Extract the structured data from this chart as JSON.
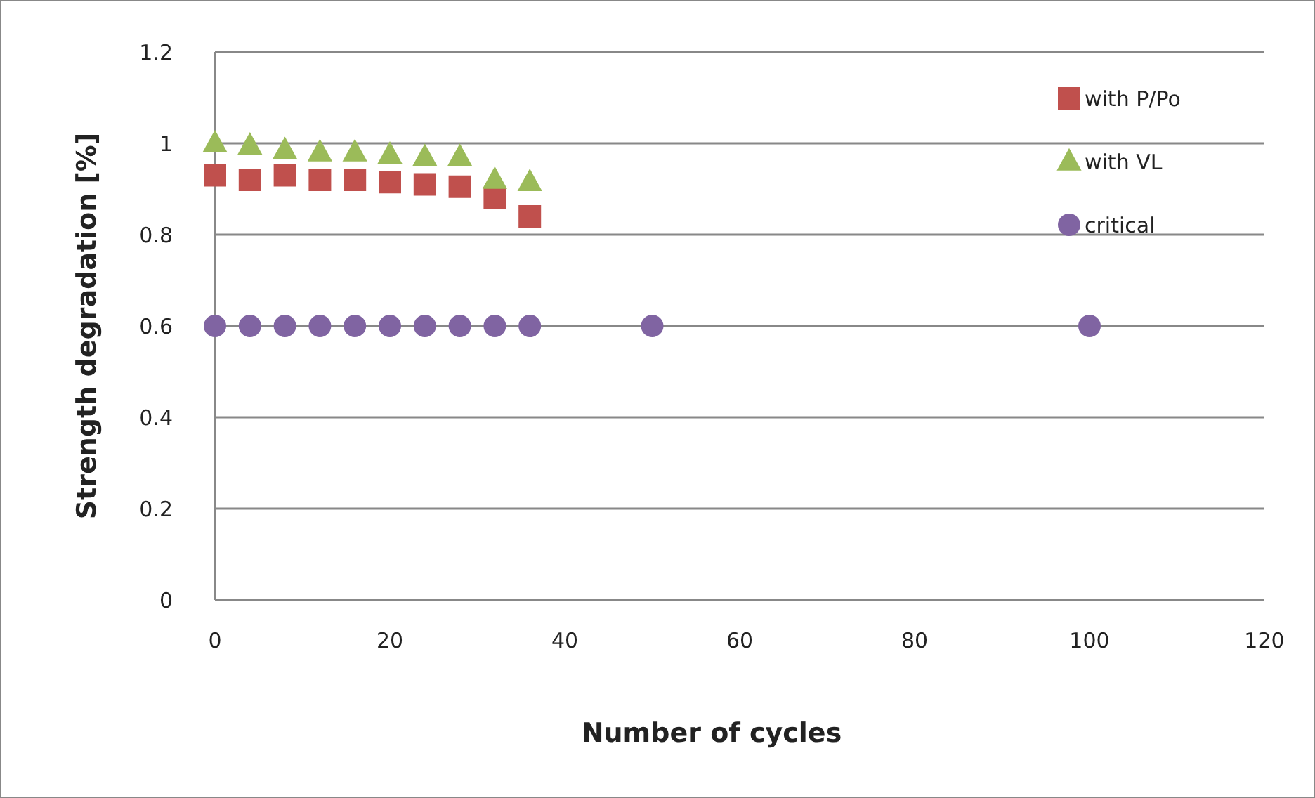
{
  "chart_data": {
    "type": "scatter",
    "xlabel": "Number of cycles",
    "ylabel": "Strength degradation [%]",
    "xlim": [
      0,
      120
    ],
    "xticks": [
      0,
      20,
      40,
      60,
      80,
      100,
      120
    ],
    "ylim": [
      0,
      1.2
    ],
    "yticks": [
      0,
      0.2,
      0.4,
      0.6,
      0.8,
      1,
      1.2
    ],
    "grid": "y",
    "legend": "top right",
    "series": [
      {
        "name": "with P/Po",
        "color": "#c0504d",
        "marker": "square",
        "x": [
          0,
          4,
          8,
          12,
          16,
          20,
          24,
          28,
          32,
          36
        ],
        "values": [
          0.93,
          0.92,
          0.93,
          0.92,
          0.92,
          0.915,
          0.91,
          0.905,
          0.88,
          0.84
        ]
      },
      {
        "name": "with VL",
        "color": "#9bbb59",
        "marker": "triangle",
        "x": [
          0,
          4,
          8,
          12,
          16,
          20,
          24,
          28,
          32,
          36
        ],
        "values": [
          1.0,
          0.995,
          0.985,
          0.98,
          0.98,
          0.975,
          0.97,
          0.97,
          0.92,
          0.915
        ]
      },
      {
        "name": "critical",
        "color": "#8064a2",
        "marker": "circle",
        "x": [
          0,
          4,
          8,
          12,
          16,
          20,
          24,
          28,
          32,
          36,
          50,
          100
        ],
        "values": [
          0.6,
          0.6,
          0.6,
          0.6,
          0.6,
          0.6,
          0.6,
          0.6,
          0.6,
          0.6,
          0.6,
          0.6
        ]
      }
    ]
  }
}
